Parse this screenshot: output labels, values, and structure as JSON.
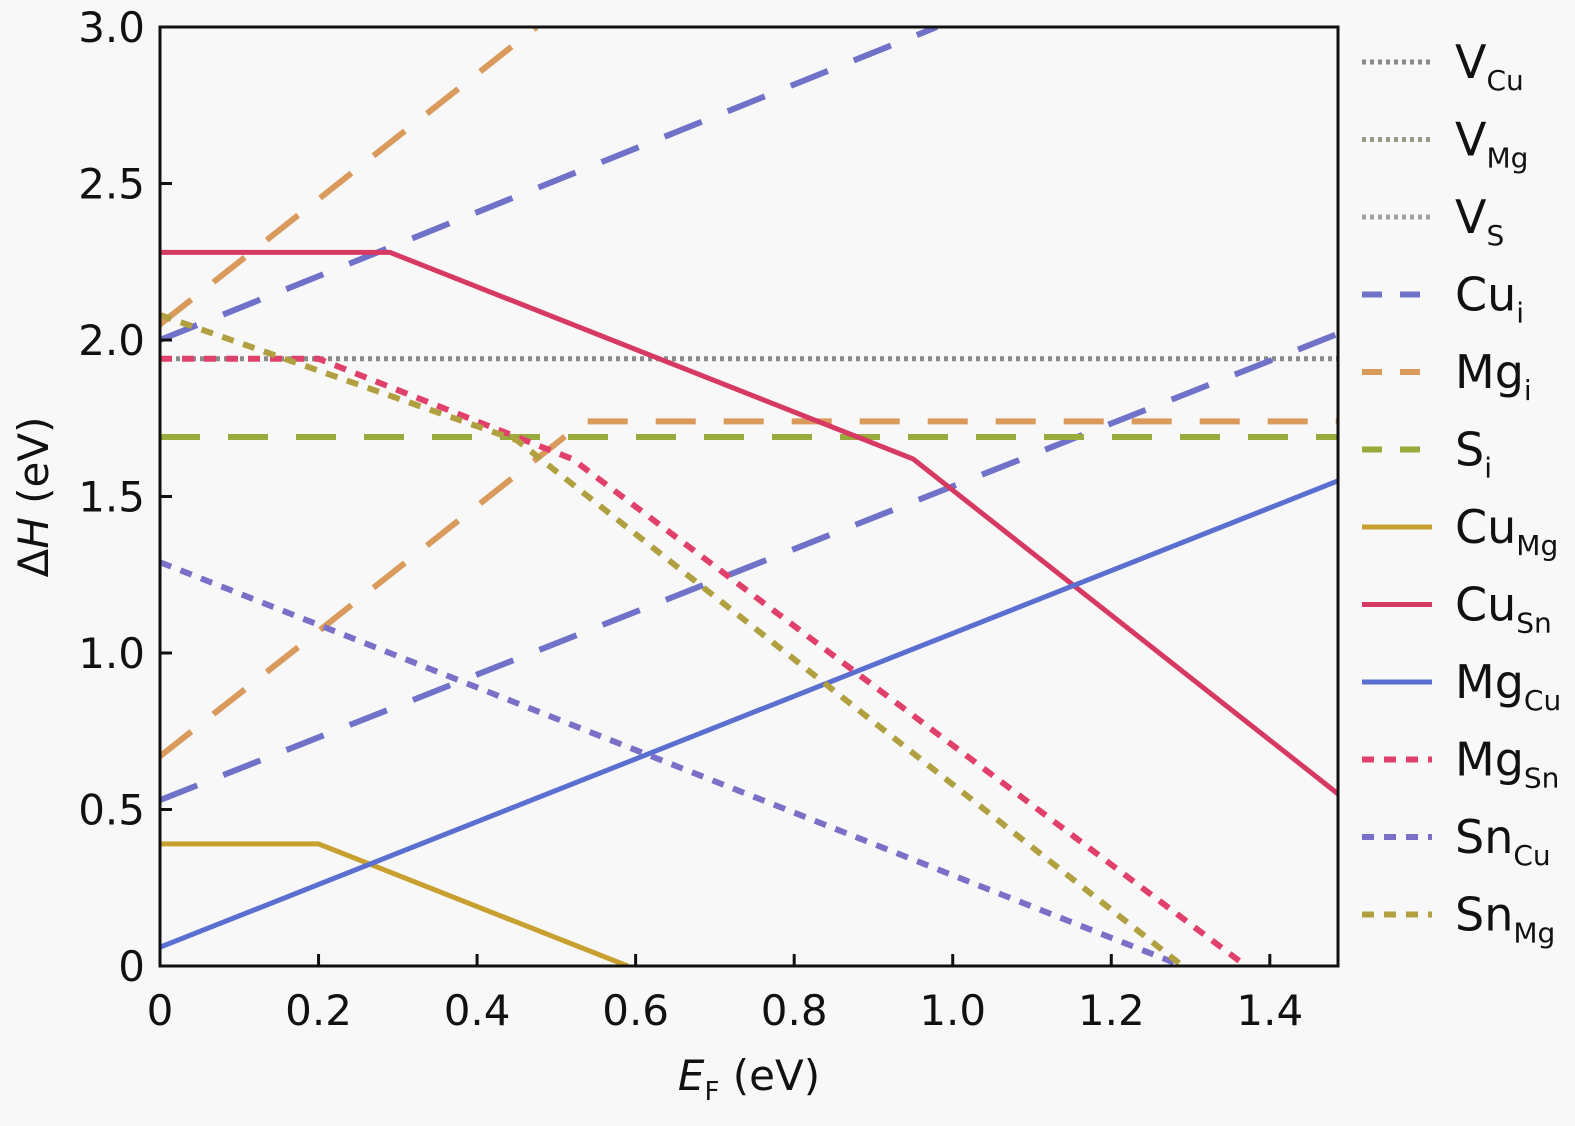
{
  "chart_data": {
    "type": "line",
    "xlabel": {
      "main": "E",
      "sub": "F",
      "unit": " (eV)"
    },
    "ylabel": {
      "pre": "Δ",
      "italic": "H",
      "unit": " (eV)"
    },
    "xlim": [
      0,
      1.486
    ],
    "ylim": [
      0,
      3.0
    ],
    "xticks": [
      "0",
      "0.2",
      "0.4",
      "0.6",
      "0.8",
      "1.0",
      "1.2",
      "1.4"
    ],
    "yticks": [
      "0",
      "0.5",
      "1.0",
      "1.5",
      "2.0",
      "2.5",
      "3.0"
    ],
    "grid": false,
    "legend_position": "right-outside",
    "series": [
      {
        "name": "V",
        "sub": "Cu",
        "style": "dotted",
        "color": "#8a8a8a",
        "segments": [
          [
            [
              0,
              1.94
            ],
            [
              1.486,
              1.94
            ]
          ]
        ]
      },
      {
        "name": "V",
        "sub": "Mg",
        "style": "dotted",
        "color": "#9a9a8a",
        "segments": []
      },
      {
        "name": "V",
        "sub": "S",
        "style": "dotted",
        "color": "#a0a0a0",
        "segments": []
      },
      {
        "name": "Cu",
        "sub": "i",
        "style": "dashed",
        "color": "#6f72c8",
        "segments": [
          [
            [
              0,
              0.53
            ],
            [
              1.486,
              2.02
            ]
          ],
          [
            [
              0,
              2.0
            ],
            [
              0.98,
              3.0
            ]
          ]
        ]
      },
      {
        "name": "Mg",
        "sub": "i",
        "style": "dashed",
        "color": "#d99a5c",
        "segments": [
          [
            [
              0,
              0.67
            ],
            [
              0.535,
              1.74
            ],
            [
              1.486,
              1.74
            ]
          ],
          [
            [
              0,
              2.05
            ],
            [
              0.475,
              3.0
            ]
          ]
        ]
      },
      {
        "name": "S",
        "sub": "i",
        "style": "dashed",
        "color": "#9aaa3c",
        "segments": [
          [
            [
              0,
              1.69
            ],
            [
              1.486,
              1.69
            ]
          ]
        ]
      },
      {
        "name": "Cu",
        "sub": "Mg",
        "style": "solid",
        "color": "#c8a030",
        "segments": [
          [
            [
              0,
              0.39
            ],
            [
              0.2,
              0.39
            ],
            [
              0.59,
              0
            ]
          ]
        ]
      },
      {
        "name": "Cu",
        "sub": "Sn",
        "style": "solid",
        "color": "#d63a63",
        "segments": [
          [
            [
              0,
              2.28
            ],
            [
              0.29,
              2.28
            ],
            [
              0.95,
              1.62
            ],
            [
              1.486,
              0.55
            ]
          ]
        ]
      },
      {
        "name": "Mg",
        "sub": "Cu",
        "style": "solid",
        "color": "#5a6fd0",
        "segments": [
          [
            [
              0,
              0.06
            ],
            [
              1.486,
              1.55
            ]
          ]
        ]
      },
      {
        "name": "Mg",
        "sub": "Sn",
        "style": "shortdash",
        "color": "#e0406a",
        "segments": [
          [
            [
              0,
              1.94
            ],
            [
              0.2,
              1.94
            ],
            [
              0.52,
              1.62
            ],
            [
              1.37,
              0
            ]
          ]
        ]
      },
      {
        "name": "Sn",
        "sub": "Cu",
        "style": "shortdash",
        "color": "#7a70c8",
        "segments": [
          [
            [
              0,
              1.29
            ],
            [
              1.29,
              0
            ]
          ]
        ]
      },
      {
        "name": "Sn",
        "sub": "Mg",
        "style": "shortdash",
        "color": "#b0a040",
        "segments": [
          [
            [
              0,
              2.08
            ],
            [
              0.45,
              1.68
            ],
            [
              1.29,
              0
            ]
          ]
        ]
      }
    ]
  }
}
